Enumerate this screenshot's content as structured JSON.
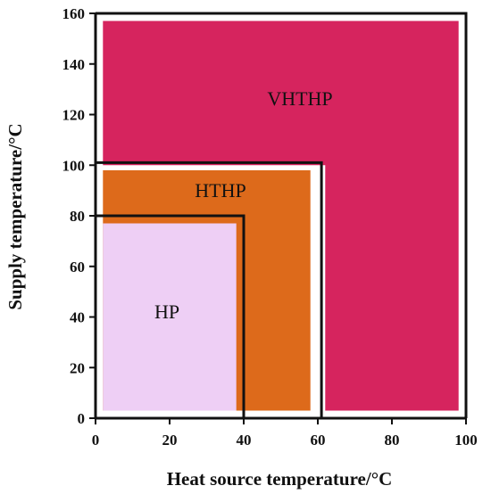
{
  "chart_data": {
    "type": "area",
    "xlabel": "Heat source temperature/°C",
    "ylabel": "Supply temperature/°C",
    "xlim": [
      0,
      100
    ],
    "ylim": [
      0,
      160
    ],
    "xticks": [
      "0",
      "20",
      "40",
      "60",
      "80",
      "100"
    ],
    "yticks": [
      "0",
      "20",
      "40",
      "60",
      "80",
      "100",
      "120",
      "140",
      "160"
    ],
    "xtick_values": [
      0,
      20,
      40,
      60,
      80,
      100
    ],
    "ytick_values": [
      0,
      20,
      40,
      60,
      80,
      100,
      120,
      140,
      160
    ],
    "regions": [
      {
        "name": "VHTHP",
        "x": [
          2,
          98
        ],
        "y": [
          3,
          157
        ],
        "inner_corner": {
          "x": 62,
          "y": 100
        },
        "color": "#d6245e"
      },
      {
        "name": "HTHP",
        "x": [
          2,
          58
        ],
        "y": [
          3,
          98
        ],
        "color": "#dd6a1b"
      },
      {
        "name": "HP",
        "x": [
          2,
          38
        ],
        "y": [
          3,
          77
        ],
        "color": "#eecff5"
      }
    ],
    "boundaries": [
      {
        "color": "#111111",
        "points": [
          [
            0,
            160
          ],
          [
            100,
            160
          ],
          [
            100,
            0
          ]
        ]
      },
      {
        "color": "#111111",
        "points": [
          [
            0,
            101
          ],
          [
            61,
            101
          ],
          [
            61,
            0
          ]
        ]
      },
      {
        "color": "#111111",
        "points": [
          [
            0,
            80
          ],
          [
            40,
            80
          ],
          [
            40,
            0
          ]
        ]
      }
    ],
    "grid": false
  }
}
